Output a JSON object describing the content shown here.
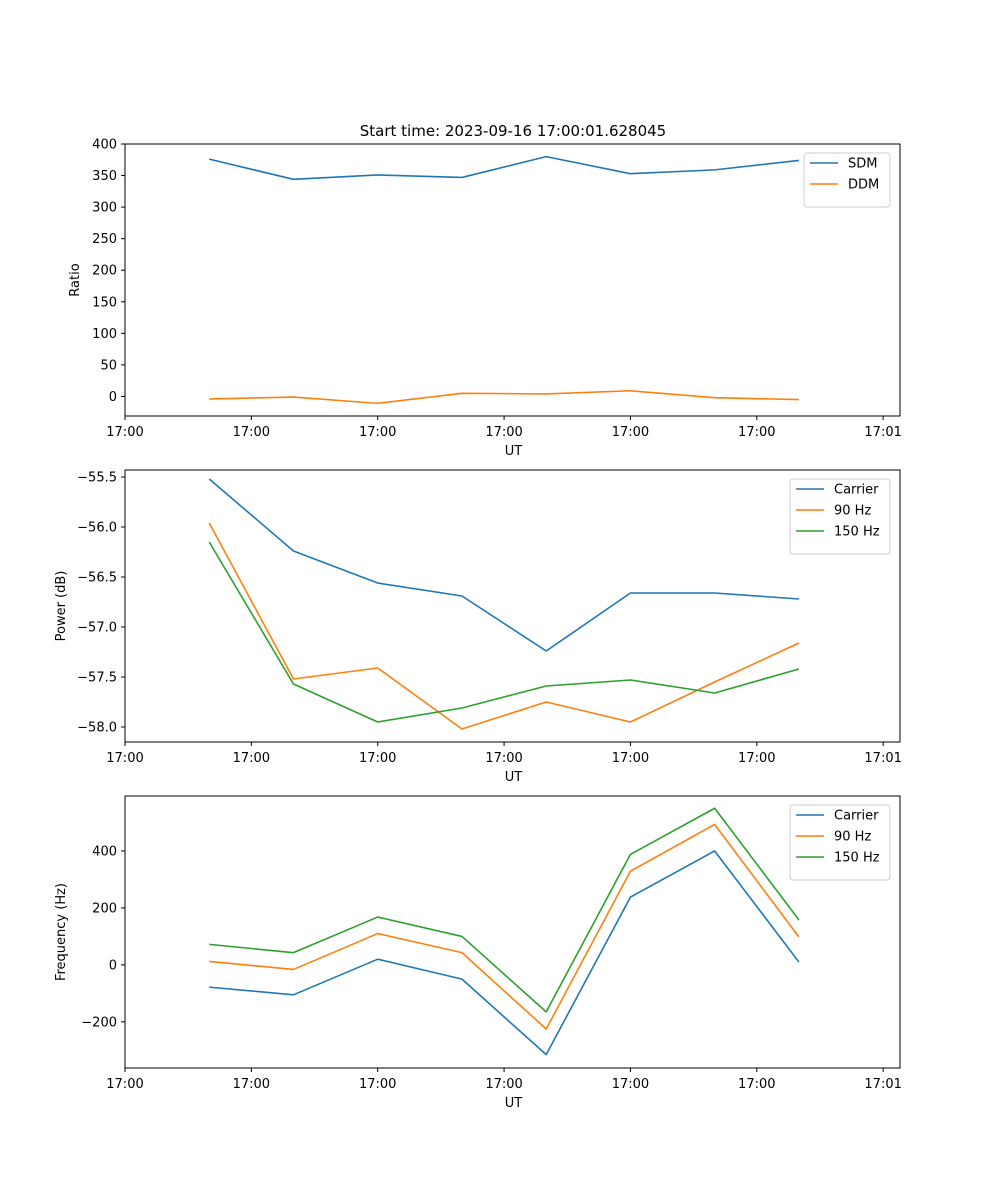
{
  "figure_title": "Start time: 2023-09-16 17:00:01.628045",
  "chart_data": [
    {
      "type": "line",
      "title": "Start time: 2023-09-16 17:00:01.628045",
      "xlabel": "UT",
      "ylabel": "Ratio",
      "x": [
        1,
        2,
        3,
        4,
        5,
        6,
        7,
        8
      ],
      "xlim": [
        0,
        9.2
      ],
      "xticks": [
        0,
        1.5,
        3,
        4.5,
        6,
        7.5,
        9
      ],
      "xtick_labels": [
        "17:00",
        "17:00",
        "17:00",
        "17:00",
        "17:00",
        "17:00",
        "17:01"
      ],
      "ylim": [
        -31,
        400
      ],
      "yticks": [
        0,
        50,
        100,
        150,
        200,
        250,
        300,
        350,
        400
      ],
      "ytick_labels": [
        "0",
        "50",
        "100",
        "150",
        "200",
        "250",
        "300",
        "350",
        "400"
      ],
      "legend": "top-right",
      "series": [
        {
          "name": "SDM",
          "color": "#1f77b4",
          "values": [
            376,
            344,
            351,
            347,
            380,
            353,
            359,
            374
          ]
        },
        {
          "name": "DDM",
          "color": "#ff7f0e",
          "values": [
            -4,
            -1,
            -11,
            5,
            4,
            9,
            -2,
            -5
          ]
        }
      ]
    },
    {
      "type": "line",
      "title": "",
      "xlabel": "UT",
      "ylabel": "Power (dB)",
      "x": [
        1,
        2,
        3,
        4,
        5,
        6,
        7,
        8
      ],
      "xlim": [
        0,
        9.2
      ],
      "xticks": [
        0,
        1.5,
        3,
        4.5,
        6,
        7.5,
        9
      ],
      "xtick_labels": [
        "17:00",
        "17:00",
        "17:00",
        "17:00",
        "17:00",
        "17:00",
        "17:01"
      ],
      "ylim": [
        -58.15,
        -55.43
      ],
      "yticks": [
        -58.0,
        -57.5,
        -57.0,
        -56.5,
        -56.0,
        -55.5
      ],
      "ytick_labels": [
        "−58.0",
        "−57.5",
        "−57.0",
        "−56.5",
        "−56.0",
        "−55.5"
      ],
      "legend": "top-right",
      "series": [
        {
          "name": "Carrier",
          "color": "#1f77b4",
          "values": [
            -55.52,
            -56.24,
            -56.56,
            -56.69,
            -57.24,
            -56.66,
            -56.66,
            -56.72
          ]
        },
        {
          "name": "90 Hz",
          "color": "#ff7f0e",
          "values": [
            -55.96,
            -57.52,
            -57.41,
            -58.02,
            -57.75,
            -57.95,
            -57.55,
            -57.16
          ]
        },
        {
          "name": "150 Hz",
          "color": "#2ca02c",
          "values": [
            -56.15,
            -57.57,
            -57.95,
            -57.81,
            -57.59,
            -57.53,
            -57.66,
            -57.42
          ]
        }
      ]
    },
    {
      "type": "line",
      "title": "",
      "xlabel": "UT",
      "ylabel": "Frequency (Hz)",
      "x": [
        1,
        2,
        3,
        4,
        5,
        6,
        7,
        8
      ],
      "xlim": [
        0,
        9.2
      ],
      "xticks": [
        0,
        1.5,
        3,
        4.5,
        6,
        7.5,
        9
      ],
      "xtick_labels": [
        "17:00",
        "17:00",
        "17:00",
        "17:00",
        "17:00",
        "17:00",
        "17:01"
      ],
      "ylim": [
        -362,
        593
      ],
      "yticks": [
        -200,
        0,
        200,
        400
      ],
      "ytick_labels": [
        "−200",
        "0",
        "200",
        "400"
      ],
      "legend": "top-right",
      "series": [
        {
          "name": "Carrier",
          "color": "#1f77b4",
          "values": [
            -78,
            -105,
            20,
            -50,
            -315,
            238,
            400,
            10
          ]
        },
        {
          "name": "90 Hz",
          "color": "#ff7f0e",
          "values": [
            12,
            -16,
            110,
            43,
            -225,
            329,
            493,
            98
          ]
        },
        {
          "name": "150 Hz",
          "color": "#2ca02c",
          "values": [
            72,
            43,
            168,
            100,
            -165,
            388,
            550,
            158
          ]
        }
      ]
    }
  ]
}
